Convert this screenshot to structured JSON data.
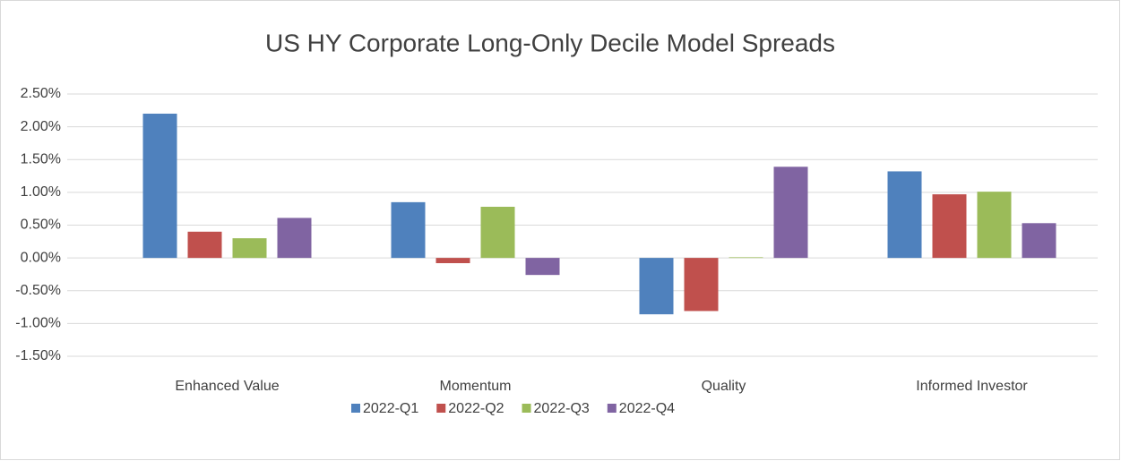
{
  "chart_data": {
    "type": "bar",
    "title": "US HY Corporate Long-Only Decile Model Spreads",
    "categories": [
      "Enhanced Value",
      "Momentum",
      "Quality",
      "Informed Investor"
    ],
    "series": [
      {
        "name": "2022-Q1",
        "color": "#4f81bd",
        "values": [
          2.2,
          0.85,
          -0.86,
          1.32
        ]
      },
      {
        "name": "2022-Q2",
        "color": "#c0504d",
        "values": [
          0.4,
          -0.08,
          -0.81,
          0.97
        ]
      },
      {
        "name": "2022-Q3",
        "color": "#9bbb59",
        "values": [
          0.3,
          0.78,
          0.01,
          1.01
        ]
      },
      {
        "name": "2022-Q4",
        "color": "#8064a2",
        "values": [
          0.61,
          -0.26,
          1.39,
          0.53
        ]
      }
    ],
    "ylim": [
      -1.5,
      2.5
    ],
    "yticks": [
      {
        "value": -1.5,
        "label": "-1.50%"
      },
      {
        "value": -1.0,
        "label": "-1.00%"
      },
      {
        "value": -0.5,
        "label": "-0.50%"
      },
      {
        "value": 0,
        "label": "0.00%"
      },
      {
        "value": 0.5,
        "label": "0.50%"
      },
      {
        "value": 1.0,
        "label": "1.00%"
      },
      {
        "value": 1.5,
        "label": "1.50%"
      },
      {
        "value": 2.0,
        "label": "2.00%"
      },
      {
        "value": 2.5,
        "label": "2.50%"
      }
    ],
    "grid": true,
    "legend": "bottom"
  }
}
